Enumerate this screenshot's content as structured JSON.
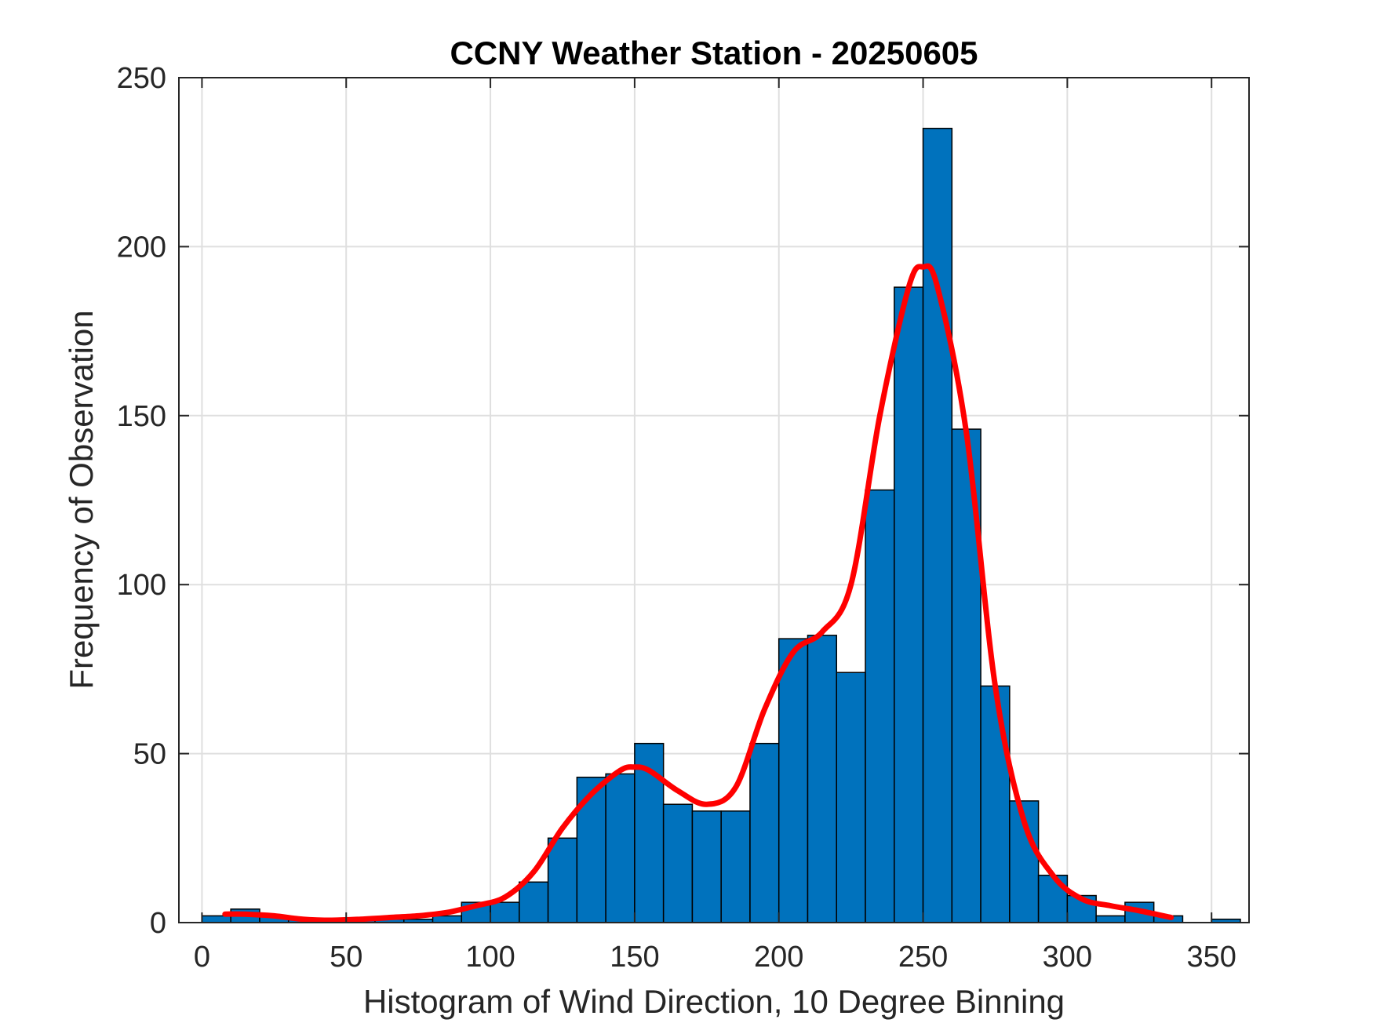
{
  "chart_data": {
    "type": "bar",
    "title": "CCNY Weather Station - 20250605",
    "xlabel": "Histogram of Wind Direction, 10 Degree Binning",
    "ylabel": "Frequency of Observation",
    "xlim": [
      -8,
      363
    ],
    "ylim": [
      0,
      250
    ],
    "xticks": [
      0,
      50,
      100,
      150,
      200,
      250,
      300,
      350
    ],
    "yticks": [
      0,
      50,
      100,
      150,
      200,
      250
    ],
    "grid": true,
    "bin_width": 10,
    "bin_edges": [
      0,
      10,
      20,
      30,
      40,
      50,
      60,
      70,
      80,
      90,
      100,
      110,
      120,
      130,
      140,
      150,
      160,
      170,
      180,
      190,
      200,
      210,
      220,
      230,
      240,
      250,
      260,
      270,
      280,
      290,
      300,
      310,
      320,
      330,
      340,
      350,
      360
    ],
    "values": [
      2,
      4,
      2,
      1,
      1,
      1,
      1,
      1,
      2,
      6,
      6,
      12,
      25,
      43,
      44,
      53,
      35,
      33,
      33,
      53,
      84,
      85,
      74,
      128,
      188,
      235,
      146,
      70,
      36,
      14,
      8,
      2,
      6,
      2,
      0,
      1
    ],
    "series": [
      {
        "name": "",
        "type": "line",
        "x": [
          8,
          15,
          25,
          35,
          45,
          55,
          65,
          75,
          85,
          95,
          105,
          115,
          125,
          135,
          145,
          150,
          155,
          165,
          175,
          185,
          195,
          205,
          215,
          225,
          235,
          245,
          250,
          255,
          265,
          275,
          285,
          295,
          305,
          315,
          325,
          336
        ],
        "y": [
          2.5,
          2.5,
          2,
          1,
          0.7,
          1,
          1.5,
          2,
          3,
          5,
          7.5,
          15,
          28,
          38,
          45,
          46,
          45,
          39,
          35,
          40,
          63,
          80,
          86,
          100,
          150,
          188,
          194,
          188,
          145,
          70,
          30,
          14,
          7,
          5,
          3.5,
          1.5
        ]
      }
    ],
    "colors": {
      "bar_fill": "#0072BD",
      "bar_edge": "#000000",
      "line": "#FF0000",
      "grid": "#DFDFDF",
      "axes": "#262626"
    }
  }
}
